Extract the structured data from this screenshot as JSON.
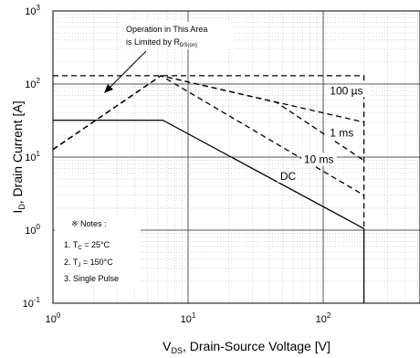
{
  "chart_data": {
    "type": "line",
    "x_scale": "log",
    "y_scale": "log",
    "xlim": [
      1,
      500
    ],
    "ylim": [
      0.1,
      1000
    ],
    "grid": true,
    "x_ticks": [
      {
        "base": "10",
        "exp": "0"
      },
      {
        "base": "10",
        "exp": "1"
      },
      {
        "base": "10",
        "exp": "2"
      }
    ],
    "y_ticks": [
      {
        "base": "10",
        "exp": "-1"
      },
      {
        "base": "10",
        "exp": "0"
      },
      {
        "base": "10",
        "exp": "1"
      },
      {
        "base": "10",
        "exp": "2"
      },
      {
        "base": "10",
        "exp": "3"
      }
    ],
    "xlabel": {
      "main": "V",
      "sub": "DS",
      "rest": ", Drain-Source Voltage [V]"
    },
    "ylabel": {
      "main": "I",
      "sub": "D",
      "rest": ", Drain Current [A]"
    },
    "annotation": {
      "line1": "Operation in This Area",
      "line2_main": "is Limited by R",
      "line2_sub": "DS(on)"
    },
    "notes": {
      "title": "※ Notes :",
      "n1_pre": "1. T",
      "n1_sub": "C",
      "n1_post": " = 25°C",
      "n2_pre": "2. T",
      "n2_sub": "J",
      "n2_post": " = 150°C",
      "n3": "3. Single Pulse"
    },
    "series": [
      {
        "name": "100 µs",
        "dash": "dashed",
        "x": [
          1,
          6.3,
          200
        ],
        "y": [
          12.7,
          130,
          30
        ]
      },
      {
        "name": "1 ms",
        "dash": "dashed",
        "x": [
          1,
          6.3,
          45,
          200
        ],
        "y": [
          12.7,
          130,
          56,
          9
        ]
      },
      {
        "name": "10 ms",
        "dash": "dashed",
        "x": [
          1,
          6.3,
          200
        ],
        "y": [
          12.7,
          130,
          3
        ]
      },
      {
        "name": "DC",
        "dash": "solid",
        "x": [
          1,
          6.5,
          200
        ],
        "y": [
          32,
          32,
          1.05
        ]
      },
      {
        "name": "",
        "dash": "dashed",
        "x": [
          1,
          200,
          200
        ],
        "y": [
          130,
          130,
          1.05
        ]
      },
      {
        "name": "",
        "dash": "solid",
        "x": [
          200,
          200
        ],
        "y": [
          0.1,
          1.05
        ]
      }
    ],
    "curve_labels": [
      {
        "text": "100 µs",
        "x": 112,
        "y": 72
      },
      {
        "text": "1 ms",
        "x": 112,
        "y": 19
      },
      {
        "text": "10 ms",
        "x": 72,
        "y": 8.3
      },
      {
        "text": "DC",
        "x": 48,
        "y": 4.9
      }
    ]
  }
}
